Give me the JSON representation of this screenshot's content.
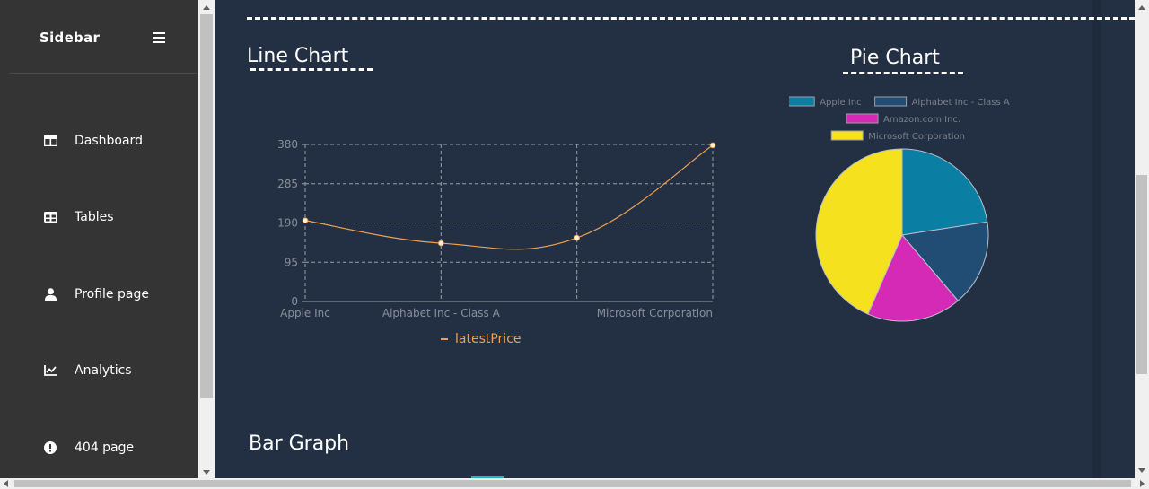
{
  "sidebar": {
    "title": "Sidebar",
    "items": [
      {
        "label": "Dashboard",
        "icon": "dashboard-icon"
      },
      {
        "label": "Tables",
        "icon": "table-icon"
      },
      {
        "label": "Profile page",
        "icon": "user-icon"
      },
      {
        "label": "Analytics",
        "icon": "chart-line-icon"
      },
      {
        "label": "404 page",
        "icon": "exclamation-circle-icon"
      }
    ]
  },
  "main": {
    "line_heading": "Line Chart",
    "pie_heading": "Pie Chart",
    "bar_heading": "Bar Graph"
  },
  "colors": {
    "sidebar_bg": "#343434",
    "main_bg": "#233044",
    "line": "#f0a050",
    "apple": "#0a7fa3",
    "alphabet": "#214d74",
    "amazon": "#d42ab5",
    "microsoft": "#f5e11e"
  },
  "chart_data": [
    {
      "type": "line",
      "categories": [
        "Apple Inc",
        "Alphabet Inc - Class A",
        "",
        "Microsoft Corporation"
      ],
      "series": [
        {
          "name": "latestPrice",
          "values": [
            196,
            141,
            154,
            378
          ]
        }
      ],
      "ylim": [
        0,
        380
      ],
      "yticks": [
        0,
        95,
        190,
        285,
        380
      ],
      "grid": true,
      "legend": "bottom"
    },
    {
      "type": "pie",
      "labels": [
        "Apple Inc",
        "Alphabet Inc - Class A",
        "Amazon.com Inc.",
        "Microsoft Corporation"
      ],
      "values": [
        196,
        141,
        154,
        378
      ],
      "legend": "top"
    }
  ]
}
